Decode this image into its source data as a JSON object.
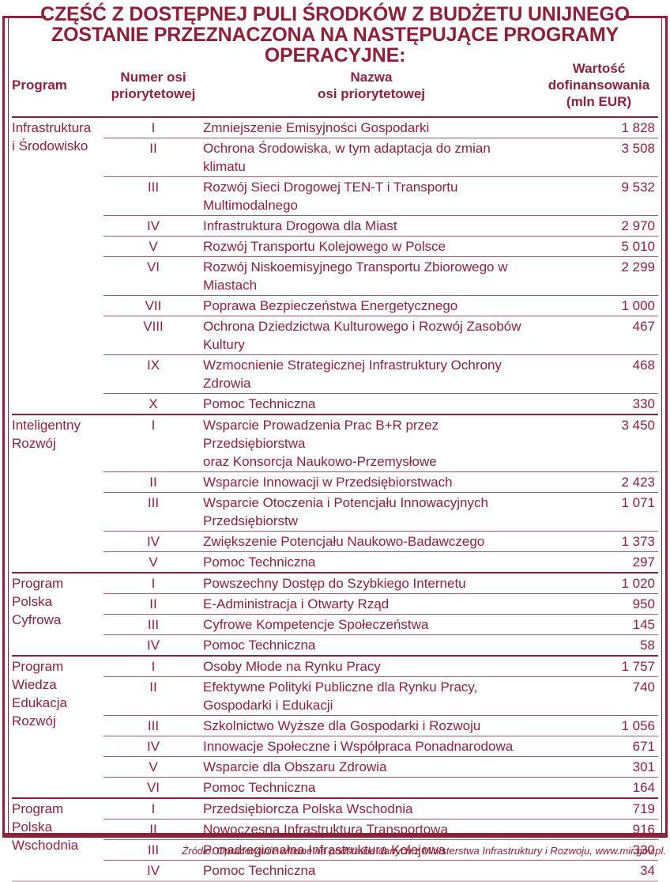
{
  "title": {
    "text": "CZĘŚĆ Z DOSTĘPNEJ PULI ŚRODKÓW Z BUDŻETU UNIJNEGO\nZOSTANIE PRZEZNACZONA NA NASTĘPUJĄCE PROGRAMY OPERACYJNE:"
  },
  "colors": {
    "accent": "#8E2139",
    "inner_row_line": "#A15A69",
    "table_bottom_line": "#D9BEC4",
    "background": "#FFFFFF"
  },
  "headers": {
    "program": "Program",
    "axis_number": "Numer osi\npriorytetowej",
    "axis_name": "Nazwa\nosi priorytetowej",
    "value": "Wartość\ndofinansowania\n(mln EUR)"
  },
  "chart_data": {
    "type": "table",
    "title": "CZĘŚĆ Z DOSTĘPNEJ PULI ŚRODKÓW Z BUDŻETU UNIJNEGO ZOSTANIE PRZEZNACZONA NA NASTĘPUJĄCE PROGRAMY OPERACYJNE:",
    "columns": [
      "Program",
      "Numer osi priorytetowej",
      "Nazwa osi priorytetowej",
      "Wartość dofinansowania (mln EUR)"
    ],
    "unit": "mln EUR",
    "sections": [
      {
        "program": [
          "Infrastruktura",
          "i Środowisko"
        ],
        "rows": [
          {
            "num": "I",
            "name": "Zmniejszenie Emisyjności Gospodarki",
            "value": "1 828"
          },
          {
            "num": "II",
            "name": "Ochrona Środowiska, w tym adaptacja do zmian klimatu",
            "value": "3 508"
          },
          {
            "num": "III",
            "name": "Rozwój Sieci Drogowej TEN-T i Transportu\nMultimodalnego",
            "value": "9 532"
          },
          {
            "num": "IV",
            "name": "Infrastruktura Drogowa dla Miast",
            "value": "2 970"
          },
          {
            "num": "V",
            "name": "Rozwój Transportu Kolejowego w Polsce",
            "value": "5 010"
          },
          {
            "num": "VI",
            "name": "Rozwój Niskoemisyjnego Transportu Zbiorowego w\nMiastach",
            "value": "2 299"
          },
          {
            "num": "VII",
            "name": "Poprawa Bezpieczeństwa Energetycznego",
            "value": "1 000"
          },
          {
            "num": "VIII",
            "name": "Ochrona Dziedzictwa Kulturowego i Rozwój Zasobów\nKultury",
            "value": "467"
          },
          {
            "num": "IX",
            "name": "Wzmocnienie Strategicznej Infrastruktury Ochrony\nZdrowia",
            "value": "468"
          },
          {
            "num": "X",
            "name": "Pomoc Techniczna",
            "value": "330"
          }
        ]
      },
      {
        "program": [
          "Inteligentny",
          "Rozwój"
        ],
        "rows": [
          {
            "num": "I",
            "name": "Wsparcie Prowadzenia Prac B+R przez Przedsiębiorstwa\noraz Konsorcja Naukowo-Przemysłowe",
            "value": "3 450"
          },
          {
            "num": "II",
            "name": "Wsparcie Innowacji w Przedsiębiorstwach",
            "value": "2 423"
          },
          {
            "num": "III",
            "name": "Wsparcie Otoczenia i Potencjału Innowacyjnych\nPrzedsiębiorstw",
            "value": "1 071"
          },
          {
            "num": "IV",
            "name": "Zwiększenie Potencjału Naukowo-Badawczego",
            "value": "1 373"
          },
          {
            "num": "V",
            "name": "Pomoc Techniczna",
            "value": "297"
          }
        ]
      },
      {
        "program": [
          "Program",
          "Polska",
          "Cyfrowa"
        ],
        "rows": [
          {
            "num": "I",
            "name": "Powszechny Dostęp do Szybkiego Internetu",
            "value": "1 020"
          },
          {
            "num": "II",
            "name": "E-Administracja i Otwarty Rząd",
            "value": "950"
          },
          {
            "num": "III",
            "name": "Cyfrowe Kompetencje Społeczeństwa",
            "value": "145"
          },
          {
            "num": "IV",
            "name": "Pomoc Techniczna",
            "value": "58"
          }
        ]
      },
      {
        "program": [
          "Program",
          "Wiedza",
          "Edukacja",
          "Rozwój"
        ],
        "rows": [
          {
            "num": "I",
            "name": "Osoby Młode na Rynku Pracy",
            "value": "1 757"
          },
          {
            "num": "II",
            "name": "Efektywne Polityki Publiczne dla Rynku Pracy,\nGospodarki i Edukacji",
            "value": "740"
          },
          {
            "num": "III",
            "name": "Szkolnictwo Wyższe dla Gospodarki i Rozwoju",
            "value": "1 056"
          },
          {
            "num": "IV",
            "name": "Innowacje Społeczne i Współpraca Ponadnarodowa",
            "value": "671"
          },
          {
            "num": "V",
            "name": "Wsparcie dla Obszaru Zdrowia",
            "value": "301"
          },
          {
            "num": "VI",
            "name": "Pomoc Techniczna",
            "value": "164"
          }
        ]
      },
      {
        "program": [
          "Program",
          "Polska",
          "Wschodnia"
        ],
        "rows": [
          {
            "num": "I",
            "name": "Przedsiębiorcza Polska Wschodnia",
            "value": "719"
          },
          {
            "num": "II",
            "name": "Nowoczesna Infrastruktura Transportowa",
            "value": "916"
          },
          {
            "num": "III",
            "name": "Ponadregionalna Infrastruktura Kolejowa",
            "value": "330"
          },
          {
            "num": "IV",
            "name": "Pomoc Techniczna",
            "value": "34"
          }
        ]
      }
    ]
  },
  "footer": {
    "source": "Źródło: Opracowanie własne na podstawie danych z Ministerstwa Infrastruktury i Rozwoju, www.mir.gov.pl."
  }
}
